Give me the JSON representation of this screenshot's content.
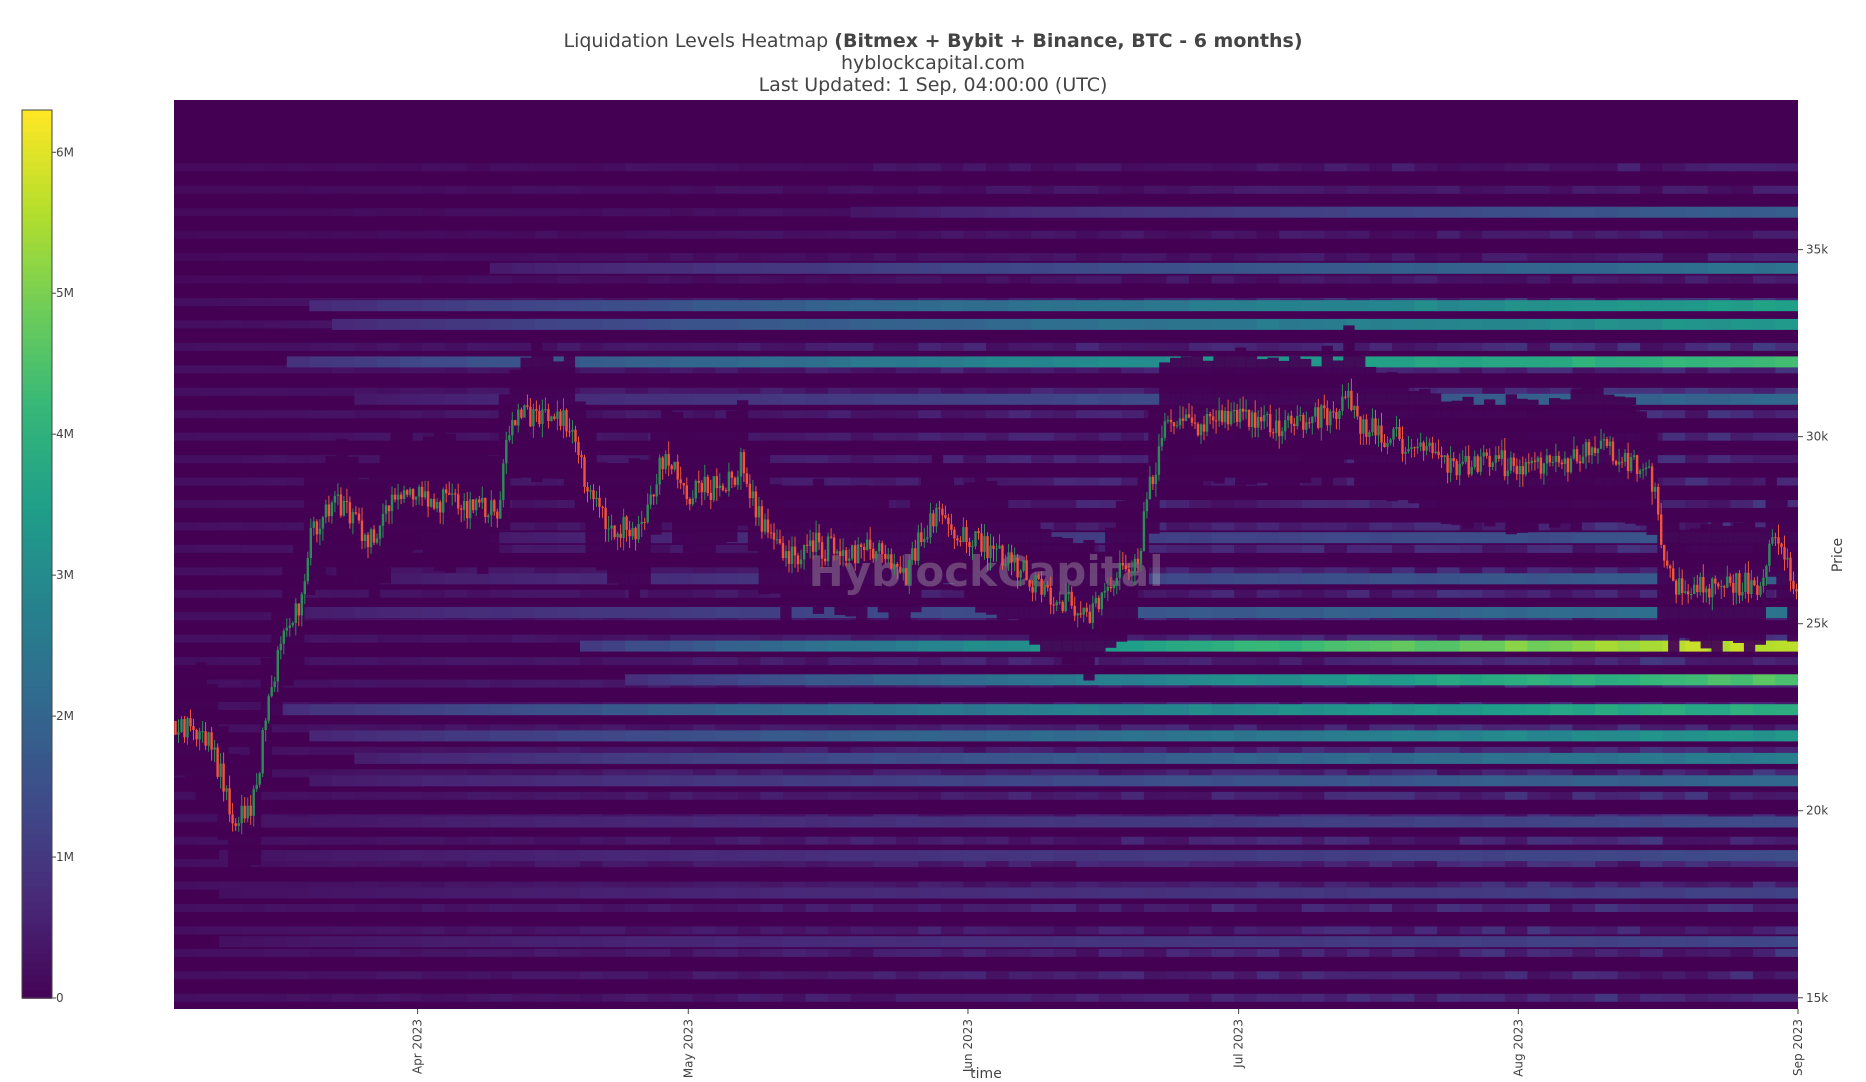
{
  "header": {
    "title_plain": "Liquidation Levels Heatmap ",
    "title_bold": "(Bitmex + Bybit + Binance, BTC - 6 months)",
    "subtitle": "hyblockcapital.com",
    "updated": "Last Updated: 1 Sep, 04:00:00 (UTC)"
  },
  "watermark": "HyblockCapital",
  "chart_data": {
    "type": "heatmap",
    "title": "Liquidation Levels Heatmap (Bitmex + Bybit + Binance, BTC - 6 months)",
    "xlabel": "time",
    "ylabel": "Price",
    "x_range": [
      "2023-03-05",
      "2023-09-01"
    ],
    "y_range": [
      14700,
      39000
    ],
    "x_ticks": [
      "Apr 2023",
      "May 2023",
      "Jun 2023",
      "Jul 2023",
      "Aug 2023",
      "Sep 2023"
    ],
    "x_tick_dates": [
      "2023-04-01",
      "2023-05-01",
      "2023-06-01",
      "2023-07-01",
      "2023-08-01",
      "2023-09-01"
    ],
    "y_ticks": [
      15000,
      20000,
      25000,
      30000,
      35000
    ],
    "y_tick_labels": [
      "15k",
      "20k",
      "25k",
      "30k",
      "35k"
    ],
    "colorbar": {
      "min": 0,
      "max": 6300000,
      "ticks": [
        0,
        1000000,
        2000000,
        3000000,
        4000000,
        5000000,
        6000000
      ],
      "tick_labels": [
        "0",
        "1M",
        "2M",
        "3M",
        "4M",
        "5M",
        "6M"
      ],
      "colorscale": "viridis"
    },
    "heat_bands": [
      {
        "price": 32000,
        "start": "2023-03-17",
        "peak": 4600000
      },
      {
        "price": 33500,
        "start": "2023-03-20",
        "peak": 3800000
      },
      {
        "price": 33000,
        "start": "2023-03-22",
        "peak": 3600000
      },
      {
        "price": 34500,
        "start": "2023-04-10",
        "peak": 2500000
      },
      {
        "price": 36000,
        "start": "2023-05-20",
        "peak": 2000000
      },
      {
        "price": 31000,
        "start": "2023-03-25",
        "peak": 2200000
      },
      {
        "price": 24400,
        "start": "2023-04-20",
        "peak": 6200000
      },
      {
        "price": 23500,
        "start": "2023-04-25",
        "peak": 4800000
      },
      {
        "price": 22700,
        "start": "2023-03-15",
        "peak": 4200000
      },
      {
        "price": 22000,
        "start": "2023-03-20",
        "peak": 3500000
      },
      {
        "price": 21400,
        "start": "2023-03-25",
        "peak": 2800000
      },
      {
        "price": 25300,
        "start": "2023-03-18",
        "peak": 2500000
      },
      {
        "price": 26200,
        "start": "2023-03-25",
        "peak": 2000000
      },
      {
        "price": 27300,
        "start": "2023-04-01",
        "peak": 1800000
      },
      {
        "price": 20800,
        "start": "2023-03-20",
        "peak": 2200000
      },
      {
        "price": 19700,
        "start": "2023-03-10",
        "peak": 1500000
      },
      {
        "price": 18800,
        "start": "2023-03-10",
        "peak": 1500000
      },
      {
        "price": 17800,
        "start": "2023-03-10",
        "peak": 1300000
      },
      {
        "price": 16500,
        "start": "2023-03-10",
        "peak": 1400000
      }
    ],
    "price_series": {
      "name": "BTC",
      "points": [
        [
          "2023-03-05",
          22400
        ],
        [
          "2023-03-09",
          22000
        ],
        [
          "2023-03-11",
          20200
        ],
        [
          "2023-03-12",
          19700
        ],
        [
          "2023-03-14",
          20300
        ],
        [
          "2023-03-15",
          22200
        ],
        [
          "2023-03-17",
          24700
        ],
        [
          "2023-03-19",
          25500
        ],
        [
          "2023-03-20",
          27400
        ],
        [
          "2023-03-23",
          28200
        ],
        [
          "2023-03-27",
          27200
        ],
        [
          "2023-03-30",
          28500
        ],
        [
          "2023-04-05",
          28200
        ],
        [
          "2023-04-10",
          28000
        ],
        [
          "2023-04-11",
          30200
        ],
        [
          "2023-04-14",
          30700
        ],
        [
          "2023-04-18",
          30300
        ],
        [
          "2023-04-20",
          28500
        ],
        [
          "2023-04-22",
          27600
        ],
        [
          "2023-04-26",
          27500
        ],
        [
          "2023-04-28",
          29500
        ],
        [
          "2023-05-01",
          28500
        ],
        [
          "2023-05-05",
          28700
        ],
        [
          "2023-05-07",
          29300
        ],
        [
          "2023-05-09",
          27800
        ],
        [
          "2023-05-12",
          26800
        ],
        [
          "2023-05-15",
          27100
        ],
        [
          "2023-05-19",
          26800
        ],
        [
          "2023-05-22",
          27000
        ],
        [
          "2023-05-25",
          26300
        ],
        [
          "2023-05-28",
          27900
        ],
        [
          "2023-05-31",
          27300
        ],
        [
          "2023-06-04",
          27000
        ],
        [
          "2023-06-07",
          26400
        ],
        [
          "2023-06-10",
          25800
        ],
        [
          "2023-06-15",
          25300
        ],
        [
          "2023-06-18",
          26400
        ],
        [
          "2023-06-20",
          26900
        ],
        [
          "2023-06-21",
          28500
        ],
        [
          "2023-06-23",
          30400
        ],
        [
          "2023-06-26",
          30300
        ],
        [
          "2023-06-30",
          30600
        ],
        [
          "2023-07-06",
          30300
        ],
        [
          "2023-07-12",
          30600
        ],
        [
          "2023-07-13",
          31400
        ],
        [
          "2023-07-14",
          30300
        ],
        [
          "2023-07-18",
          30000
        ],
        [
          "2023-07-24",
          29300
        ],
        [
          "2023-07-30",
          29300
        ],
        [
          "2023-08-02",
          29200
        ],
        [
          "2023-08-08",
          29400
        ],
        [
          "2023-08-09",
          29800
        ],
        [
          "2023-08-14",
          29300
        ],
        [
          "2023-08-16",
          28800
        ],
        [
          "2023-08-17",
          26500
        ],
        [
          "2023-08-18",
          26100
        ],
        [
          "2023-08-22",
          26000
        ],
        [
          "2023-08-25",
          26100
        ],
        [
          "2023-08-28",
          26000
        ],
        [
          "2023-08-29",
          27700
        ],
        [
          "2023-08-30",
          27200
        ],
        [
          "2023-08-31",
          26600
        ],
        [
          "2023-09-01",
          25900
        ]
      ]
    }
  }
}
